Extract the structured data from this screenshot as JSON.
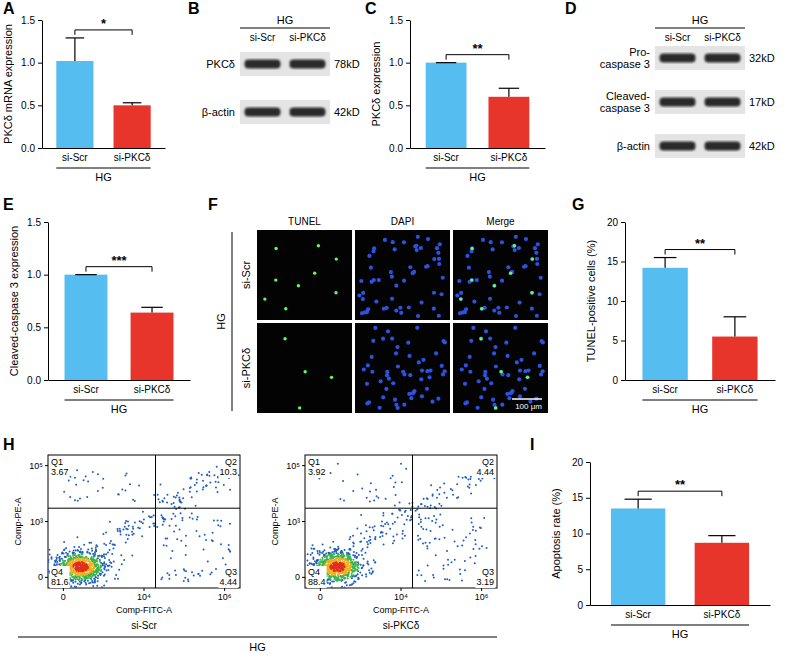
{
  "chart_data": [
    {
      "type": "bar",
      "panel": "A",
      "y_label": "PKCδ mRNA expression",
      "group_label": "HG",
      "categories": [
        "si-Scr",
        "si-PKCδ"
      ],
      "values": [
        1.02,
        0.5
      ],
      "errors": [
        0.27,
        0.03
      ],
      "colors": [
        "#56BDF0",
        "#E8352B"
      ],
      "ylim": [
        0,
        1.5
      ],
      "yticks": [
        {
          "value": 0,
          "label": "0.0"
        },
        {
          "value": 0.5,
          "label": "0.5"
        },
        {
          "value": 1,
          "label": "1.0"
        },
        {
          "value": 1.5,
          "label": "1.5"
        }
      ],
      "significance": "*"
    },
    {
      "type": "bar",
      "panel": "C",
      "y_label": "PKCδ expression",
      "group_label": "HG",
      "categories": [
        "si-Scr",
        "si-PKCδ"
      ],
      "values": [
        1.0,
        0.6
      ],
      "errors": [
        0,
        0.1
      ],
      "colors": [
        "#56BDF0",
        "#E8352B"
      ],
      "ylim": [
        0,
        1.5
      ],
      "yticks": [
        {
          "value": 0,
          "label": "0.0"
        },
        {
          "value": 0.5,
          "label": "0.5"
        },
        {
          "value": 1,
          "label": "1.0"
        },
        {
          "value": 1.5,
          "label": "1.5"
        }
      ],
      "significance": "**"
    },
    {
      "type": "bar",
      "panel": "E",
      "y_label": "Cleaved-caspase 3 expression",
      "group_label": "HG",
      "categories": [
        "si-Scr",
        "si-PKCδ"
      ],
      "values": [
        1.0,
        0.64
      ],
      "errors": [
        0,
        0.05
      ],
      "colors": [
        "#56BDF0",
        "#E8352B"
      ],
      "ylim": [
        0,
        1.5
      ],
      "yticks": [
        {
          "value": 0,
          "label": "0.0"
        },
        {
          "value": 0.5,
          "label": "0.5"
        },
        {
          "value": 1,
          "label": "1.0"
        },
        {
          "value": 1.5,
          "label": "1.5"
        }
      ],
      "significance": "***"
    },
    {
      "type": "bar",
      "panel": "G",
      "y_label": "TUNEL-positive cells (%)",
      "group_label": "HG",
      "categories": [
        "si-Scr",
        "si-PKCδ"
      ],
      "values": [
        14.2,
        5.5
      ],
      "errors": [
        1.3,
        2.5
      ],
      "colors": [
        "#56BDF0",
        "#E8352B"
      ],
      "ylim": [
        0,
        20
      ],
      "yticks": [
        0,
        5,
        10,
        15,
        20
      ],
      "significance": "**"
    },
    {
      "type": "bar",
      "panel": "I",
      "y_label": "Apoptosis rate (%)",
      "group_label": "HG",
      "categories": [
        "si-Scr",
        "si-PKCδ"
      ],
      "values": [
        13.5,
        8.7
      ],
      "errors": [
        1.3,
        1.0
      ],
      "colors": [
        "#56BDF0",
        "#E8352B"
      ],
      "ylim": [
        0,
        20
      ],
      "yticks": [
        0,
        5,
        10,
        15,
        20
      ],
      "significance": "**"
    }
  ],
  "blots": [
    {
      "panel": "B",
      "condition": "HG",
      "lanes": [
        "si-Scr",
        "si-PKCδ"
      ],
      "rows": [
        {
          "name": "PKCδ",
          "size": "78kD"
        },
        {
          "name": "β-actin",
          "size": "42kD"
        }
      ]
    },
    {
      "panel": "D",
      "condition": "HG",
      "lanes": [
        "si-Scr",
        "si-PKCδ"
      ],
      "rows": [
        {
          "name": "Pro-caspase 3",
          "size": "32kD"
        },
        {
          "name": "Cleaved-caspase 3",
          "size": "17kD"
        },
        {
          "name": "β-actin",
          "size": "42kD"
        }
      ]
    }
  ],
  "tunel": {
    "panel": "F",
    "condition": "HG",
    "columns": [
      "TUNEL",
      "DAPI",
      "Merge"
    ],
    "rows": [
      "si-Scr",
      "si-PKCδ"
    ],
    "scale_bar": "100 μm"
  },
  "flow": {
    "panel": "H",
    "condition": "HG",
    "x_label": "Comp-FITC-A",
    "y_label": "Comp-PE-A",
    "xticks": [
      "0",
      "10⁴",
      "10⁶"
    ],
    "yticks": [
      "0",
      "10³",
      "10⁵"
    ],
    "plots": [
      {
        "sample": "si-Scr",
        "quadrants": [
          {
            "name": "Q1",
            "value": 3.67
          },
          {
            "name": "Q2",
            "value": 10.3
          },
          {
            "name": "Q3",
            "value": 4.44
          },
          {
            "name": "Q4",
            "value": 81.6
          }
        ]
      },
      {
        "sample": "si-PKCδ",
        "quadrants": [
          {
            "name": "Q1",
            "value": 3.92
          },
          {
            "name": "Q2",
            "value": 4.44
          },
          {
            "name": "Q3",
            "value": 3.19
          },
          {
            "name": "Q4",
            "value": 88.4
          }
        ]
      }
    ]
  }
}
